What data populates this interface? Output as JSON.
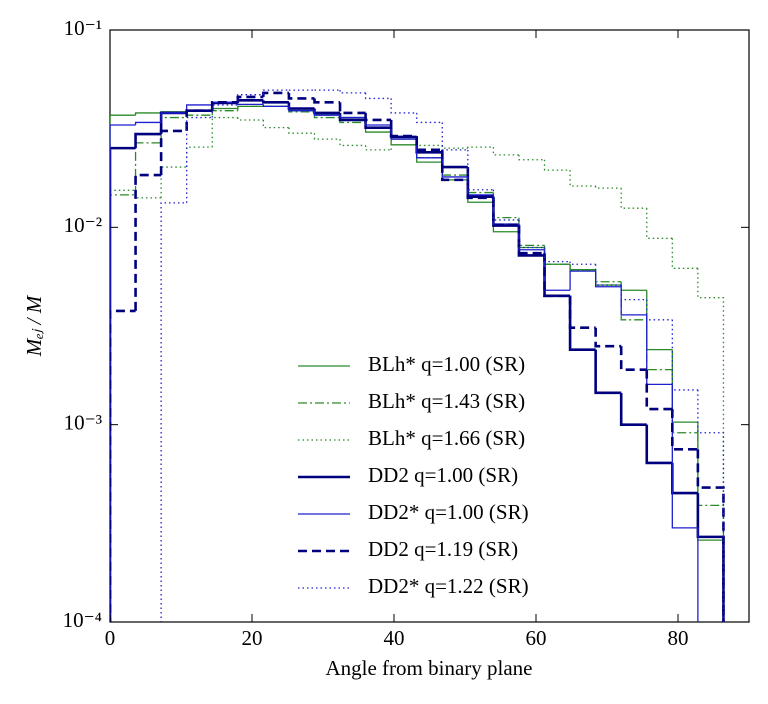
{
  "chart_data": {
    "type": "histogram",
    "xlabel": "Angle from binary plane",
    "ylabel": "Mₑⱼ / M",
    "yscale": "log",
    "xlim": [
      0,
      90
    ],
    "xticks": [
      0,
      20,
      40,
      60,
      80
    ],
    "ylim": [
      0.0001,
      0.1
    ],
    "yticks": [
      {
        "value": 0.0001,
        "label": "10⁻⁴"
      },
      {
        "value": 0.001,
        "label": "10⁻³"
      },
      {
        "value": 0.01,
        "label": "10⁻²"
      },
      {
        "value": 0.1,
        "label": "10⁻¹"
      }
    ],
    "legend": "lower center",
    "bins": [
      0,
      3.6,
      7.2,
      10.8,
      14.4,
      18,
      21.6,
      25.2,
      28.8,
      32.4,
      36,
      39.6,
      43.2,
      46.8,
      50.4,
      54,
      57.6,
      61.2,
      64.8,
      68.4,
      72,
      75.6,
      79.2,
      82.8,
      86.4
    ],
    "series": [
      {
        "name": "BLh* q=1.00 (SR)",
        "color": "#2a8a2a",
        "linestyle": "solid",
        "linewidth": 1.3,
        "values": [
          0.037,
          0.038,
          0.0385,
          0.039,
          0.04,
          0.041,
          0.041,
          0.039,
          0.0375,
          0.036,
          0.0304,
          0.0262,
          0.0214,
          0.0174,
          0.0134,
          0.0095,
          0.0079,
          0.0065,
          0.0061,
          0.0051,
          0.0048,
          0.0024,
          0.00103,
          0.00026
        ]
      },
      {
        "name": "BLh* q=1.43 (SR)",
        "color": "#2a8a2a",
        "linestyle": "dashdot",
        "linewidth": 1.3,
        "values": [
          0.0146,
          0.0268,
          0.036,
          0.037,
          0.039,
          0.041,
          0.041,
          0.0385,
          0.036,
          0.034,
          0.032,
          0.028,
          0.0225,
          0.0184,
          0.015,
          0.0112,
          0.0081,
          0.0065,
          0.0061,
          0.0053,
          0.0034,
          0.0019,
          0.00091,
          0.00039
        ]
      },
      {
        "name": "BLh* q=1.66 (SR)",
        "color": "#2a8a2a",
        "linestyle": "dotted",
        "linewidth": 1.3,
        "values": [
          0.0154,
          0.0141,
          0.0202,
          0.0255,
          0.036,
          0.035,
          0.032,
          0.03,
          0.028,
          0.026,
          0.0247,
          0.028,
          0.026,
          0.0252,
          0.0255,
          0.0233,
          0.022,
          0.0195,
          0.0162,
          0.0158,
          0.0125,
          0.0088,
          0.0062,
          0.0044
        ]
      },
      {
        "name": "DD2 q=1.00 (SR)",
        "color": "#00007f",
        "linestyle": "solid",
        "linewidth": 2.6,
        "values": [
          0.0252,
          0.0297,
          0.038,
          0.039,
          0.0427,
          0.044,
          0.043,
          0.04,
          0.038,
          0.035,
          0.032,
          0.0287,
          0.024,
          0.0202,
          0.0143,
          0.0102,
          0.0072,
          0.0045,
          0.0024,
          0.00145,
          0.001,
          0.00064,
          0.00045,
          0.00027
        ]
      },
      {
        "name": "DD2* q=1.00 (SR)",
        "color": "#1f1fd0",
        "linestyle": "solid",
        "linewidth": 1.3,
        "values": [
          0.033,
          0.034,
          0.038,
          0.0417,
          0.043,
          0.042,
          0.041,
          0.039,
          0.037,
          0.036,
          0.033,
          0.028,
          0.0225,
          0.018,
          0.0146,
          0.0104,
          0.0077,
          0.0048,
          0.006,
          0.005,
          0.0036,
          0.0016,
          0.0003,
          8e-05
        ]
      },
      {
        "name": "DD2 q=1.19 (SR)",
        "color": "#00007f",
        "linestyle": "dashed",
        "linewidth": 2.6,
        "values": [
          0.00377,
          0.0184,
          0.0308,
          0.039,
          0.043,
          0.0458,
          0.048,
          0.045,
          0.043,
          0.038,
          0.035,
          0.029,
          0.0247,
          0.0174,
          0.0141,
          0.0103,
          0.0074,
          0.0045,
          0.0031,
          0.0025,
          0.0019,
          0.0012,
          0.00075,
          0.00048
        ]
      },
      {
        "name": "DD2* q=1.22 (SR)",
        "color": "#1f1fd0",
        "linestyle": "dotted",
        "linewidth": 1.3,
        "values": [
          null,
          null,
          0.0133,
          0.036,
          0.0417,
          0.047,
          0.0496,
          0.0496,
          0.0496,
          0.048,
          0.045,
          0.038,
          0.034,
          0.0247,
          0.0155,
          0.0109,
          0.0079,
          0.0067,
          0.0065,
          0.0051,
          0.0043,
          0.0034,
          0.0015,
          0.00091
        ]
      }
    ]
  }
}
